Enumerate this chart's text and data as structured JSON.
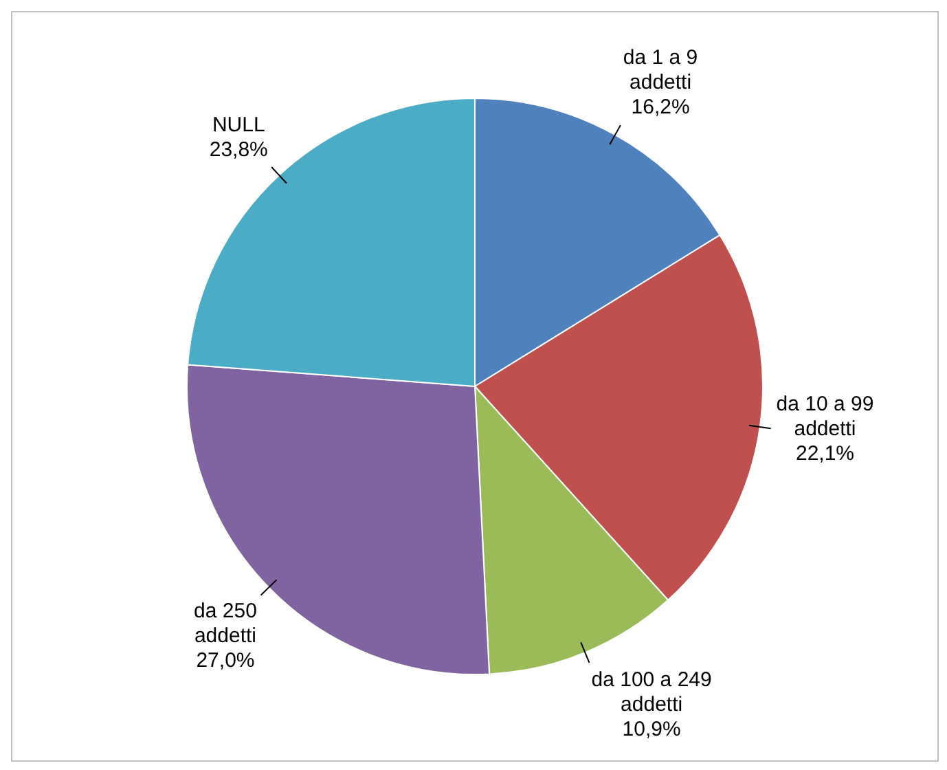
{
  "chart_data": {
    "type": "pie",
    "categories": [
      "da 1 a 9 addetti",
      "da 10 a 99 addetti",
      "da 100 a 249 addetti",
      "da 250 addetti",
      "NULL"
    ],
    "values": [
      16.2,
      22.1,
      10.9,
      27.0,
      23.8
    ],
    "value_labels": [
      "16,2%",
      "22,1%",
      "10,9%",
      "27,0%",
      "23,8%"
    ],
    "colors": [
      "#4f81bd",
      "#c0504d",
      "#9bbb59",
      "#8064a2",
      "#4bacc6"
    ],
    "legend": false
  }
}
